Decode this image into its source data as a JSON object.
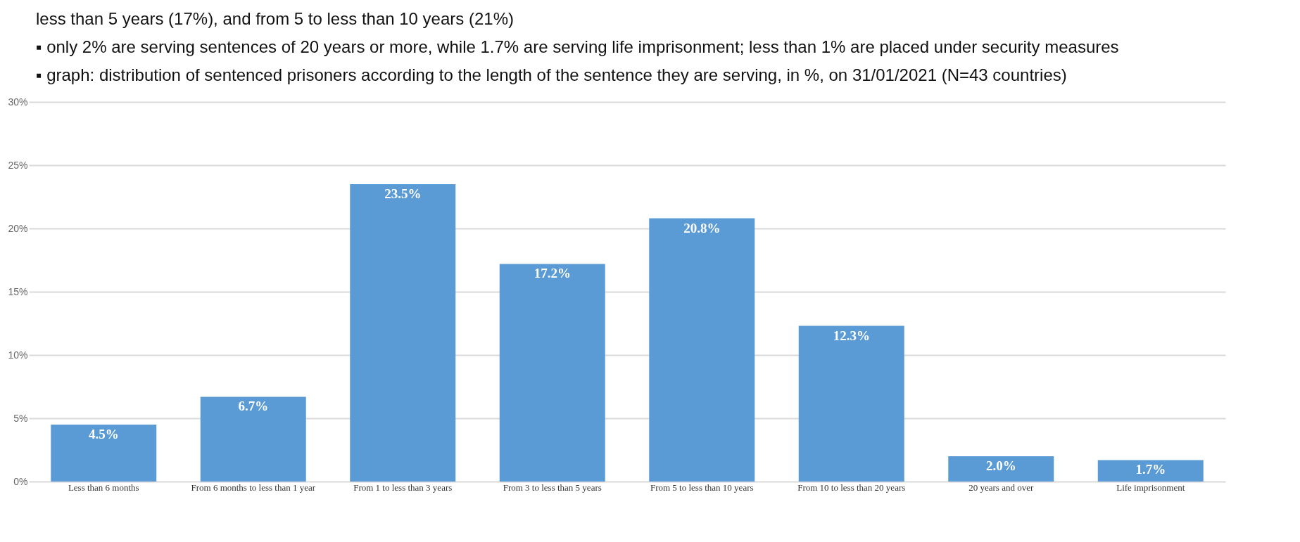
{
  "chart_data": {
    "type": "bar",
    "categories": [
      "Less than 6 months",
      "From 6 months to less than 1 year",
      "From 1 to less than 3 years",
      "From 3 to less than 5 years",
      "From 5 to less than 10 years",
      "From 10 to less than 20 years",
      "20 years and over",
      "Life imprisonment"
    ],
    "values": [
      4.5,
      6.7,
      23.5,
      17.2,
      20.8,
      12.3,
      2.0,
      1.7
    ],
    "value_labels": [
      "4.5%",
      "6.7%",
      "23.5%",
      "17.2%",
      "20.8%",
      "12.3%",
      "2.0%",
      "1.7%"
    ],
    "color": "#5b9bd5",
    "ylim": [
      0,
      30
    ],
    "yticks": [
      {
        "value": 0,
        "label": "0%"
      },
      {
        "value": 5,
        "label": "5%"
      },
      {
        "value": 10,
        "label": "10%"
      },
      {
        "value": 15,
        "label": "15%"
      },
      {
        "value": 20,
        "label": "20%"
      },
      {
        "value": 25,
        "label": "25%"
      },
      {
        "value": 30,
        "label": "30%"
      }
    ],
    "grid": "y",
    "annotations": [
      "less than 5 years (17%), and from 5 to less than 10 years (21%)",
      "▪ only 2% are serving sentences of 20 years or more, while 1.7% are serving life imprisonment; less than 1% are placed under security measures",
      "▪ graph: distribution of sentenced prisoners according to the length of the sentence they are serving, in %, on 31/01/2021 (N=43 countries)"
    ]
  }
}
